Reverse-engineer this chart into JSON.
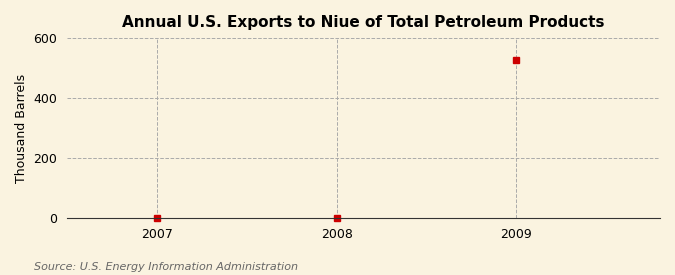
{
  "title": "Annual U.S. Exports to Niue of Total Petroleum Products",
  "ylabel": "Thousand Barrels",
  "source": "Source: U.S. Energy Information Administration",
  "x_values": [
    2007,
    2008,
    2009
  ],
  "y_values": [
    0,
    0,
    527
  ],
  "ylim": [
    0,
    600
  ],
  "yticks": [
    0,
    200,
    400,
    600
  ],
  "xlim": [
    2006.5,
    2009.8
  ],
  "xticks": [
    2007,
    2008,
    2009
  ],
  "background_color": "#faf3e0",
  "plot_bg_color": "#faf3e0",
  "marker_color": "#cc0000",
  "marker_style": "s",
  "marker_size": 5,
  "grid_color": "#aaaaaa",
  "grid_style": "--",
  "title_fontsize": 11,
  "label_fontsize": 9,
  "tick_fontsize": 9,
  "source_fontsize": 8
}
